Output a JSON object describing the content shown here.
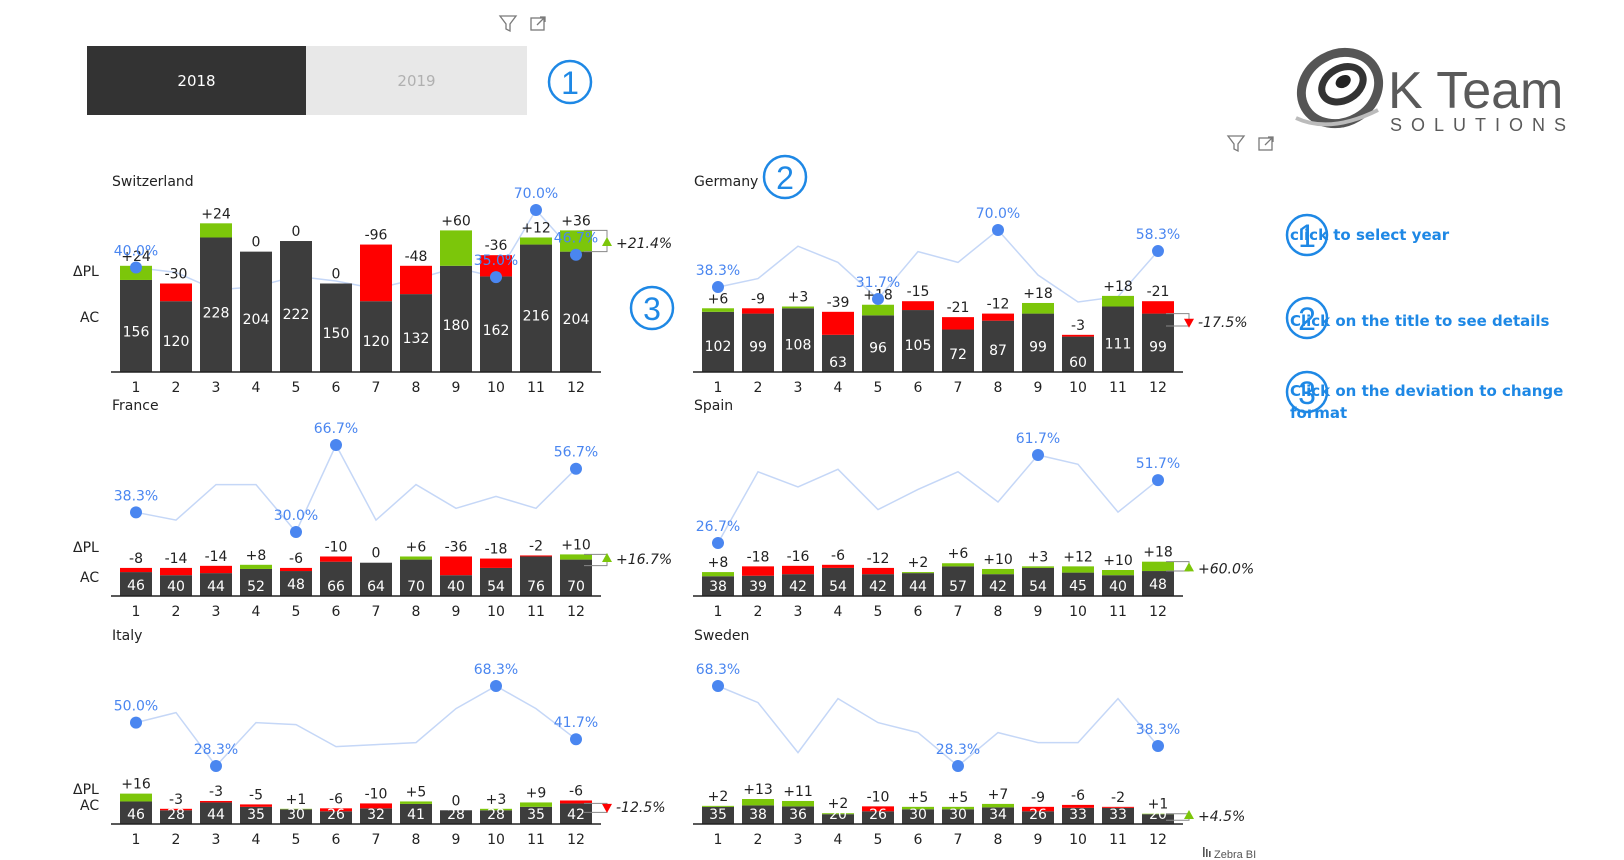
{
  "slicer": {
    "options": [
      "2018",
      "2019"
    ],
    "selected": "2018"
  },
  "logo": {
    "line1": "K Team",
    "line2": "SOLUTIONS"
  },
  "markers": {
    "one": "1",
    "two": "2",
    "three": "3"
  },
  "hints": [
    {
      "number": "1",
      "text": "click to select year"
    },
    {
      "number": "2",
      "text": "Click on the title to see details"
    },
    {
      "number": "3",
      "text": "Click on the deviation to change format"
    }
  ],
  "row_labels": {
    "delta": "ΔPL",
    "actual": "AC"
  },
  "footer": {
    "brand": "Zebra BI"
  },
  "colors": {
    "actual": "#3d3d3d",
    "positive": "#7cc60a",
    "negative": "#ff0000",
    "line": "#c5d7f7",
    "point": "#4a86f0",
    "accent": "#1e88e5"
  },
  "icons": [
    "filter-icon",
    "focus-mode-icon",
    "cursor-icon",
    "up-arrow-icon",
    "down-arrow-icon",
    "logo-swirl-icon"
  ],
  "chart_data": [
    {
      "type": "bar",
      "title": "Switzerland",
      "categories": [
        "1",
        "2",
        "3",
        "4",
        "5",
        "6",
        "7",
        "8",
        "9",
        "10",
        "11",
        "12"
      ],
      "series": [
        {
          "name": "AC",
          "values": [
            156,
            120,
            228,
            204,
            222,
            150,
            120,
            132,
            180,
            162,
            216,
            204
          ]
        },
        {
          "name": "ΔPL",
          "values": [
            24,
            -30,
            24,
            0,
            0,
            0,
            -96,
            -48,
            60,
            -36,
            12,
            36
          ],
          "labels": [
            "+24",
            "-30",
            "+24",
            "0",
            "0",
            "0",
            "-96",
            "-48",
            "+60",
            "-36",
            "+12",
            "+36"
          ]
        }
      ],
      "line": {
        "values": [
          40.0,
          37.5,
          28.3,
          30.0,
          35.5,
          33.0,
          29.0,
          34.0,
          40.0,
          35.0,
          70.0,
          46.7
        ],
        "labels": [
          "40.0%",
          "",
          "",
          "",
          "",
          "",
          "",
          "",
          "",
          "35.0%",
          "70.0%",
          "46.7%"
        ]
      },
      "total_deviation": "+21.4%"
    },
    {
      "type": "bar",
      "title": "Germany",
      "categories": [
        "1",
        "2",
        "3",
        "4",
        "5",
        "6",
        "7",
        "8",
        "9",
        "10",
        "11",
        "12"
      ],
      "series": [
        {
          "name": "AC",
          "values": [
            102,
            99,
            108,
            63,
            96,
            105,
            72,
            87,
            99,
            60,
            111,
            99
          ]
        },
        {
          "name": "ΔPL",
          "values": [
            6,
            -9,
            3,
            -39,
            18,
            -15,
            -21,
            -12,
            18,
            -3,
            18,
            -21
          ],
          "labels": [
            "+6",
            "-9",
            "+3",
            "-39",
            "+18",
            "-15",
            "-21",
            "-12",
            "+18",
            "-3",
            "+18",
            "-21"
          ]
        }
      ],
      "line": {
        "values": [
          38.3,
          43.0,
          61.0,
          52.0,
          31.7,
          58.0,
          52.0,
          70.0,
          45.0,
          30.0,
          33.0,
          58.3
        ],
        "labels": [
          "38.3%",
          "",
          "",
          "",
          "31.7%",
          "",
          "",
          "70.0%",
          "",
          "",
          "",
          "58.3%"
        ]
      },
      "total_deviation": "-17.5%"
    },
    {
      "type": "bar",
      "title": "France",
      "categories": [
        "1",
        "2",
        "3",
        "4",
        "5",
        "6",
        "7",
        "8",
        "9",
        "10",
        "11",
        "12"
      ],
      "series": [
        {
          "name": "AC",
          "values": [
            46,
            40,
            44,
            52,
            48,
            66,
            64,
            70,
            40,
            54,
            76,
            70
          ]
        },
        {
          "name": "ΔPL",
          "values": [
            -8,
            -14,
            -14,
            8,
            -6,
            -10,
            0,
            6,
            -36,
            -18,
            -2,
            10
          ],
          "labels": [
            "-8",
            "-14",
            "-14",
            "+8",
            "-6",
            "-10",
            "0",
            "+6",
            "-36",
            "-18",
            "-2",
            "+10"
          ]
        }
      ],
      "line": {
        "values": [
          38.3,
          35.0,
          50.0,
          50.0,
          30.0,
          66.7,
          35.0,
          50.0,
          40.0,
          45.0,
          40.0,
          56.7
        ],
        "labels": [
          "38.3%",
          "",
          "",
          "",
          "30.0%",
          "66.7%",
          "",
          "",
          "",
          "",
          "",
          "56.7%"
        ]
      },
      "total_deviation": "+16.7%"
    },
    {
      "type": "bar",
      "title": "Spain",
      "categories": [
        "1",
        "2",
        "3",
        "4",
        "5",
        "6",
        "7",
        "8",
        "9",
        "10",
        "11",
        "12"
      ],
      "series": [
        {
          "name": "AC",
          "values": [
            38,
            39,
            42,
            54,
            42,
            44,
            57,
            42,
            54,
            45,
            40,
            48
          ]
        },
        {
          "name": "ΔPL",
          "values": [
            8,
            -18,
            -16,
            -6,
            -12,
            2,
            6,
            10,
            3,
            12,
            10,
            18
          ],
          "labels": [
            "+8",
            "-18",
            "-16",
            "-6",
            "-12",
            "+2",
            "+6",
            "+10",
            "+3",
            "+12",
            "+10",
            "+18"
          ]
        }
      ],
      "line": {
        "values": [
          26.7,
          55.0,
          49.0,
          56.0,
          40.0,
          48.0,
          55.0,
          43.0,
          61.7,
          58.0,
          39.0,
          51.7
        ],
        "labels": [
          "26.7%",
          "",
          "",
          "",
          "",
          "",
          "",
          "",
          "61.7%",
          "",
          "",
          "51.7%"
        ]
      },
      "total_deviation": "+60.0%"
    },
    {
      "type": "bar",
      "title": "Italy",
      "categories": [
        "1",
        "2",
        "3",
        "4",
        "5",
        "6",
        "7",
        "8",
        "9",
        "10",
        "11",
        "12"
      ],
      "series": [
        {
          "name": "AC",
          "values": [
            46,
            28,
            44,
            35,
            30,
            26,
            32,
            41,
            28,
            28,
            35,
            42
          ]
        },
        {
          "name": "ΔPL",
          "values": [
            16,
            -3,
            -3,
            -5,
            1,
            -6,
            -10,
            5,
            0,
            3,
            9,
            -6
          ],
          "labels": [
            "+16",
            "-3",
            "-3",
            "-5",
            "+1",
            "-6",
            "-10",
            "+5",
            "0",
            "+3",
            "+9",
            "-6"
          ]
        }
      ],
      "line": {
        "values": [
          50.0,
          55.0,
          28.3,
          50.0,
          49.0,
          38.0,
          39.0,
          40.0,
          57.0,
          68.3,
          57.0,
          41.7
        ],
        "labels": [
          "50.0%",
          "",
          "28.3%",
          "",
          "",
          "",
          "",
          "",
          "",
          "68.3%",
          "",
          "41.7%"
        ]
      },
      "total_deviation": "-12.5%"
    },
    {
      "type": "bar",
      "title": "Sweden",
      "categories": [
        "1",
        "2",
        "3",
        "4",
        "5",
        "6",
        "7",
        "8",
        "9",
        "10",
        "11",
        "12"
      ],
      "series": [
        {
          "name": "AC",
          "values": [
            35,
            38,
            36,
            20,
            26,
            30,
            30,
            34,
            26,
            33,
            33,
            20
          ]
        },
        {
          "name": "ΔPL",
          "values": [
            2,
            13,
            11,
            2,
            -10,
            5,
            5,
            7,
            -9,
            -6,
            -2,
            1
          ],
          "labels": [
            "+2",
            "+13",
            "+11",
            "+2",
            "-10",
            "+5",
            "+5",
            "+7",
            "-9",
            "-6",
            "-2",
            "+1"
          ]
        }
      ],
      "line": {
        "values": [
          68.3,
          60.0,
          35.0,
          62.0,
          50.0,
          45.0,
          28.3,
          45.0,
          40.0,
          40.0,
          62.0,
          38.3
        ],
        "labels": [
          "68.3%",
          "",
          "",
          "",
          "",
          "",
          "28.3%",
          "",
          "",
          "",
          "",
          "38.3%"
        ]
      },
      "total_deviation": "+4.5%"
    }
  ]
}
